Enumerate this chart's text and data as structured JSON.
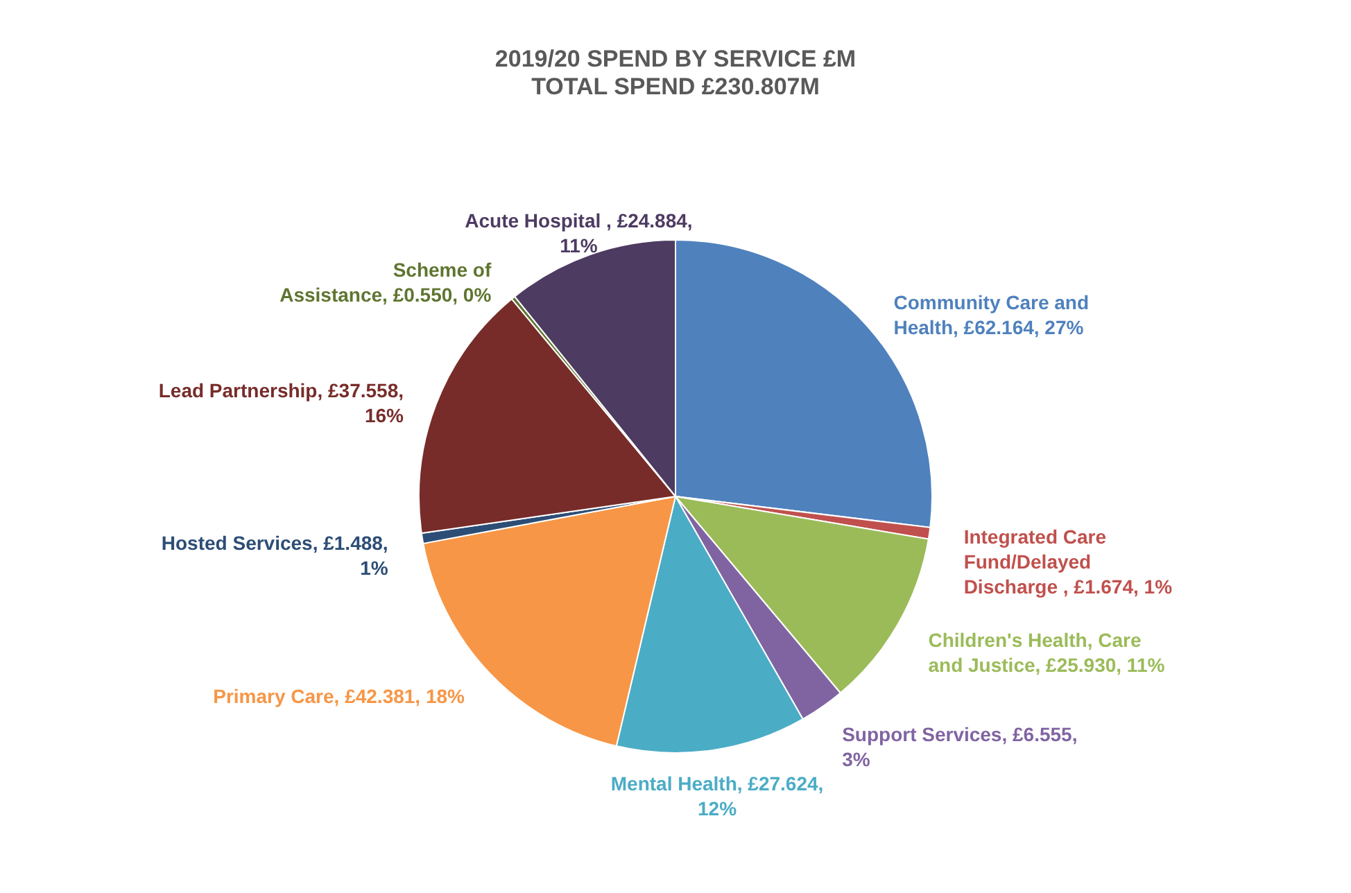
{
  "chart_data": {
    "type": "pie",
    "title": "2019/20 SPEND BY SERVICE £M",
    "subtitle": "TOTAL SPEND £230.807M",
    "categories": [
      "Community Care and Health",
      "Integrated Care Fund/Delayed Discharge ",
      "Children's Health, Care and Justice",
      "Support Services",
      "Mental Health",
      "Primary Care",
      "Hosted Services",
      "Lead Partnership",
      "Scheme of Assistance",
      "Acute Hospital "
    ],
    "values": [
      62.164,
      1.674,
      25.93,
      6.555,
      27.624,
      42.381,
      1.488,
      37.558,
      0.55,
      24.884
    ],
    "colors": [
      "#4f81bd",
      "#c0504d",
      "#9bbb59",
      "#8064a2",
      "#4bacc6",
      "#f79646",
      "#2c4d75",
      "#772c2a",
      "#5f7530",
      "#4d3b62"
    ],
    "value_labels": [
      "£62.164, 27%",
      "£1.674, 1%",
      "£25.930, 11%",
      "£6.555, 3%",
      "£27.624, 12%",
      "£42.381, 18%",
      "£1.488, 1%",
      "£37.558, 16%",
      "£0.550, 0%",
      "£24.884, 11%"
    ]
  }
}
